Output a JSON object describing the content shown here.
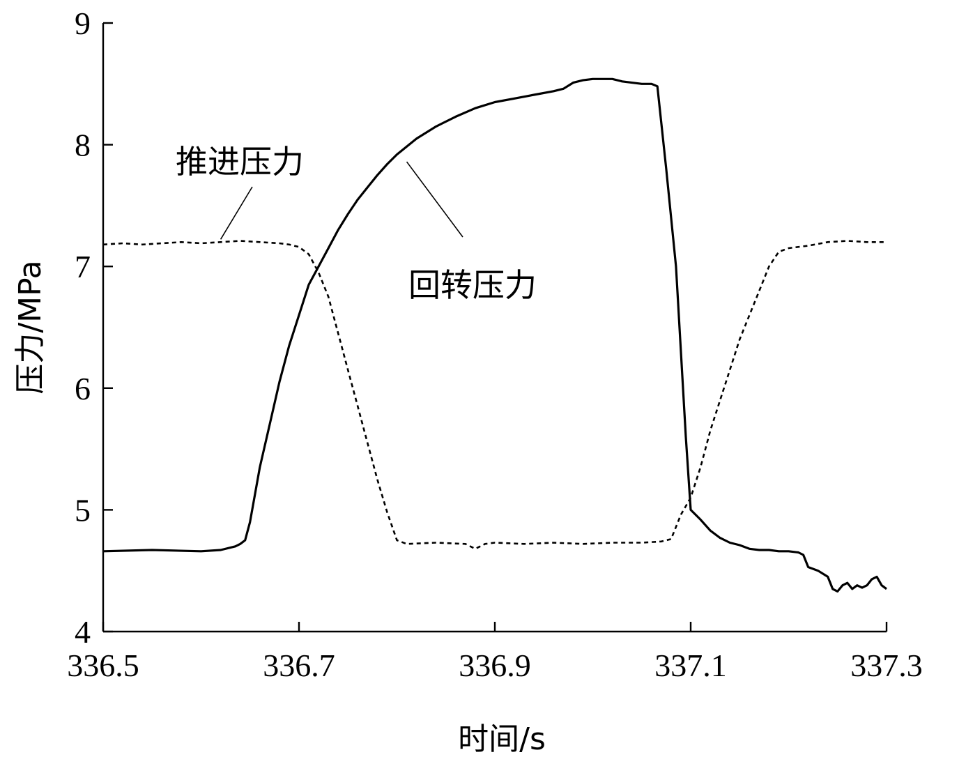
{
  "chart_data": {
    "type": "line",
    "xlabel": "时间/s",
    "ylabel": "压力/MPa",
    "xlim": [
      336.5,
      337.3
    ],
    "ylim": [
      4,
      9
    ],
    "x_ticks": [
      "336.5",
      "336.7",
      "336.9",
      "337.1",
      "337.3"
    ],
    "y_ticks": [
      "4",
      "5",
      "6",
      "7",
      "8",
      "9"
    ],
    "grid": false,
    "series": [
      {
        "name": "回转压力",
        "style": "solid",
        "color": "#000000",
        "points": [
          [
            336.5,
            4.66
          ],
          [
            336.55,
            4.67
          ],
          [
            336.6,
            4.66
          ],
          [
            336.62,
            4.67
          ],
          [
            336.635,
            4.7
          ],
          [
            336.64,
            4.72
          ],
          [
            336.645,
            4.75
          ],
          [
            336.65,
            4.9
          ],
          [
            336.66,
            5.35
          ],
          [
            336.67,
            5.7
          ],
          [
            336.68,
            6.05
          ],
          [
            336.69,
            6.35
          ],
          [
            336.7,
            6.6
          ],
          [
            336.71,
            6.85
          ],
          [
            336.72,
            7.0
          ],
          [
            336.73,
            7.15
          ],
          [
            336.74,
            7.3
          ],
          [
            336.75,
            7.43
          ],
          [
            336.76,
            7.55
          ],
          [
            336.77,
            7.65
          ],
          [
            336.78,
            7.75
          ],
          [
            336.79,
            7.84
          ],
          [
            336.8,
            7.92
          ],
          [
            336.82,
            8.05
          ],
          [
            336.84,
            8.15
          ],
          [
            336.86,
            8.23
          ],
          [
            336.88,
            8.3
          ],
          [
            336.9,
            8.35
          ],
          [
            336.92,
            8.38
          ],
          [
            336.94,
            8.41
          ],
          [
            336.96,
            8.44
          ],
          [
            336.97,
            8.46
          ],
          [
            336.98,
            8.51
          ],
          [
            336.99,
            8.53
          ],
          [
            337.0,
            8.54
          ],
          [
            337.01,
            8.54
          ],
          [
            337.02,
            8.54
          ],
          [
            337.03,
            8.52
          ],
          [
            337.04,
            8.51
          ],
          [
            337.05,
            8.5
          ],
          [
            337.06,
            8.5
          ],
          [
            337.066,
            8.48
          ],
          [
            337.075,
            7.8
          ],
          [
            337.085,
            7.0
          ],
          [
            337.095,
            5.6
          ],
          [
            337.1,
            5.0
          ],
          [
            337.11,
            4.92
          ],
          [
            337.12,
            4.83
          ],
          [
            337.13,
            4.77
          ],
          [
            337.14,
            4.73
          ],
          [
            337.15,
            4.71
          ],
          [
            337.16,
            4.68
          ],
          [
            337.17,
            4.67
          ],
          [
            337.18,
            4.67
          ],
          [
            337.19,
            4.66
          ],
          [
            337.2,
            4.66
          ],
          [
            337.21,
            4.65
          ],
          [
            337.215,
            4.63
          ],
          [
            337.22,
            4.53
          ],
          [
            337.23,
            4.5
          ],
          [
            337.24,
            4.45
          ],
          [
            337.245,
            4.35
          ],
          [
            337.25,
            4.33
          ],
          [
            337.255,
            4.38
          ],
          [
            337.26,
            4.4
          ],
          [
            337.265,
            4.35
          ],
          [
            337.27,
            4.38
          ],
          [
            337.275,
            4.36
          ],
          [
            337.28,
            4.38
          ],
          [
            337.285,
            4.43
          ],
          [
            337.29,
            4.45
          ],
          [
            337.295,
            4.38
          ],
          [
            337.3,
            4.35
          ]
        ]
      },
      {
        "name": "推进压力",
        "style": "dashed",
        "color": "#000000",
        "points": [
          [
            336.5,
            7.18
          ],
          [
            336.52,
            7.19
          ],
          [
            336.54,
            7.18
          ],
          [
            336.56,
            7.19
          ],
          [
            336.58,
            7.2
          ],
          [
            336.6,
            7.19
          ],
          [
            336.62,
            7.2
          ],
          [
            336.64,
            7.21
          ],
          [
            336.66,
            7.2
          ],
          [
            336.68,
            7.19
          ],
          [
            336.69,
            7.18
          ],
          [
            336.7,
            7.16
          ],
          [
            336.71,
            7.1
          ],
          [
            336.72,
            6.95
          ],
          [
            336.73,
            6.75
          ],
          [
            336.74,
            6.45
          ],
          [
            336.75,
            6.15
          ],
          [
            336.76,
            5.85
          ],
          [
            336.77,
            5.55
          ],
          [
            336.78,
            5.25
          ],
          [
            336.79,
            4.98
          ],
          [
            336.8,
            4.75
          ],
          [
            336.81,
            4.72
          ],
          [
            336.84,
            4.73
          ],
          [
            336.87,
            4.72
          ],
          [
            336.88,
            4.68
          ],
          [
            336.89,
            4.72
          ],
          [
            336.9,
            4.73
          ],
          [
            336.93,
            4.72
          ],
          [
            336.96,
            4.73
          ],
          [
            336.99,
            4.72
          ],
          [
            337.02,
            4.73
          ],
          [
            337.05,
            4.73
          ],
          [
            337.07,
            4.74
          ],
          [
            337.08,
            4.76
          ],
          [
            337.09,
            4.96
          ],
          [
            337.1,
            5.1
          ],
          [
            337.11,
            5.35
          ],
          [
            337.12,
            5.65
          ],
          [
            337.13,
            5.9
          ],
          [
            337.14,
            6.15
          ],
          [
            337.15,
            6.4
          ],
          [
            337.16,
            6.6
          ],
          [
            337.17,
            6.8
          ],
          [
            337.18,
            7.0
          ],
          [
            337.19,
            7.12
          ],
          [
            337.2,
            7.15
          ],
          [
            337.22,
            7.17
          ],
          [
            337.24,
            7.2
          ],
          [
            337.26,
            7.21
          ],
          [
            337.28,
            7.2
          ],
          [
            337.3,
            7.2
          ]
        ]
      }
    ],
    "annotations": [
      {
        "text": "推进压力",
        "series": "推进压力",
        "anchor": [
          336.62,
          7.2
        ]
      },
      {
        "text": "回转压力",
        "series": "回转压力",
        "anchor": [
          336.81,
          7.86
        ]
      }
    ]
  }
}
